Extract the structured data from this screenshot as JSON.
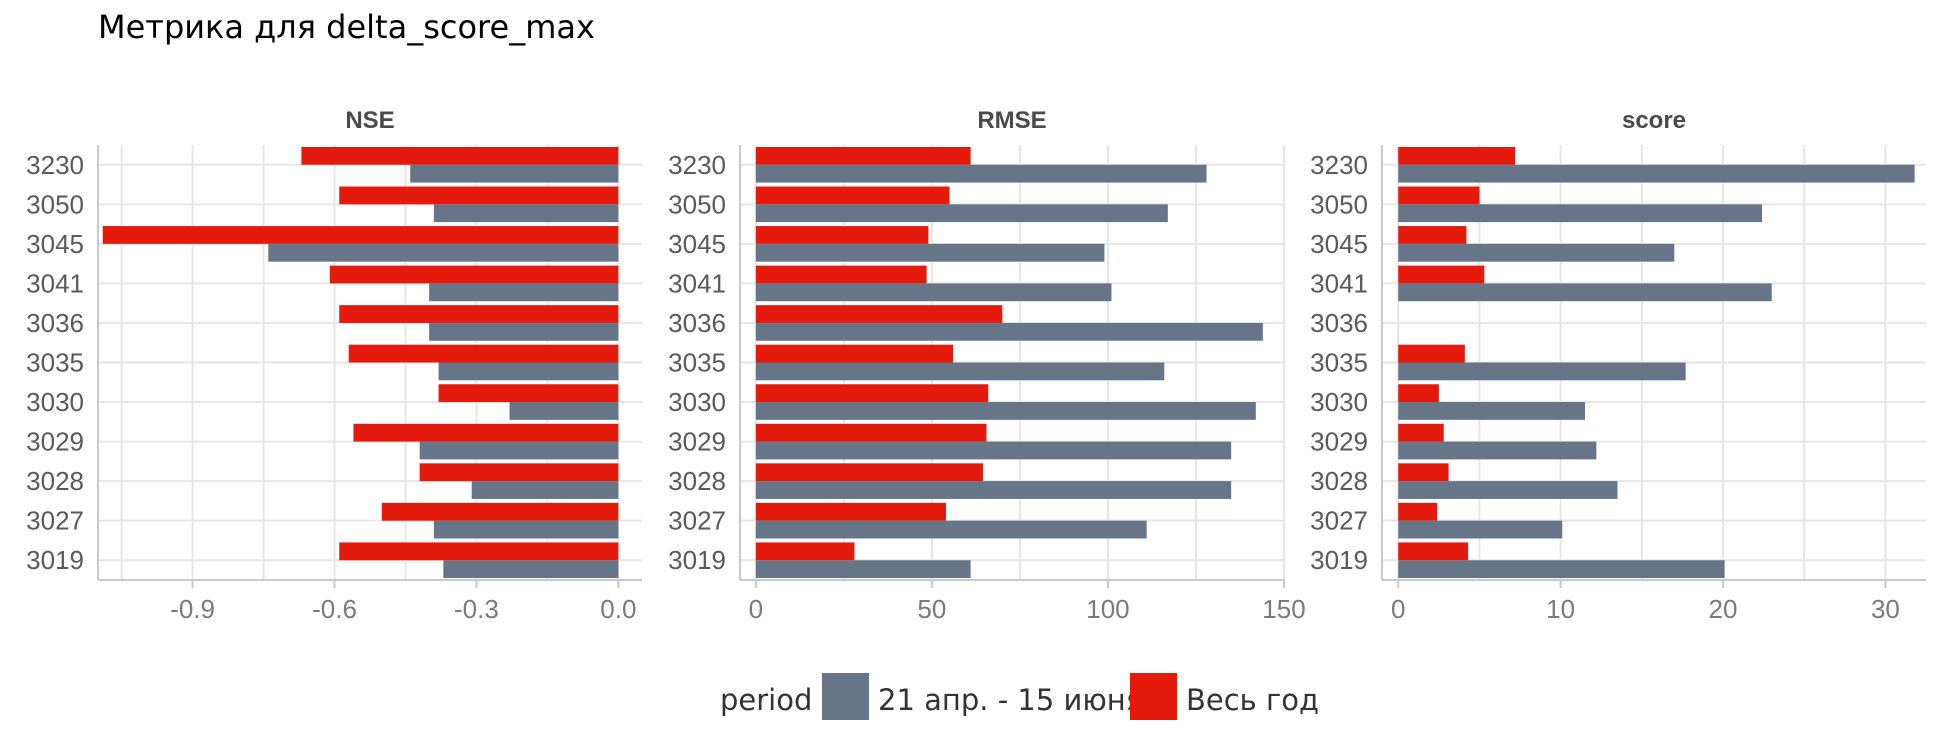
{
  "title": "Метрика для delta_score_max",
  "colors": {
    "series_a": "#667587",
    "series_b": "#e31a0c",
    "grid": "#e6e6e6",
    "axis": "#c8c8c8"
  },
  "legend": {
    "title": "period",
    "items": [
      {
        "label": "21 апр. - 15 июня",
        "color": "#667587"
      },
      {
        "label": "Весь год",
        "color": "#e31a0c"
      }
    ]
  },
  "chart_data": [
    {
      "type": "bar",
      "orientation": "horizontal",
      "panel": "NSE",
      "categories": [
        "3230",
        "3050",
        "3045",
        "3041",
        "3036",
        "3035",
        "3030",
        "3029",
        "3028",
        "3027",
        "3019"
      ],
      "series": [
        {
          "name": "21 апр. - 15 июня",
          "values": [
            -0.44,
            -0.39,
            -0.74,
            -0.4,
            -0.4,
            -0.38,
            -0.23,
            -0.42,
            -0.31,
            -0.39,
            -0.37
          ]
        },
        {
          "name": "Весь год",
          "values": [
            -0.67,
            -0.59,
            -1.09,
            -0.61,
            -0.59,
            -0.57,
            -0.38,
            -0.56,
            -0.42,
            -0.5,
            -0.59
          ]
        }
      ],
      "xlim": [
        -1.1,
        0.05
      ],
      "xticks": [
        -0.9,
        -0.6,
        -0.3,
        0.0
      ],
      "xtick_labels": [
        "-0.9",
        "-0.6",
        "-0.3",
        "0.0"
      ]
    },
    {
      "type": "bar",
      "orientation": "horizontal",
      "panel": "RMSE",
      "categories": [
        "3230",
        "3050",
        "3045",
        "3041",
        "3036",
        "3035",
        "3030",
        "3029",
        "3028",
        "3027",
        "3019"
      ],
      "series": [
        {
          "name": "21 апр. - 15 июня",
          "values": [
            128,
            117,
            99,
            101,
            144,
            116,
            142,
            135,
            135,
            111,
            61
          ]
        },
        {
          "name": "Весь год",
          "values": [
            61,
            55,
            49,
            48.5,
            70,
            56,
            66,
            65.5,
            64.5,
            54,
            28
          ]
        }
      ],
      "xlim": [
        -4.5,
        150
      ],
      "xticks": [
        0,
        50,
        100,
        150
      ],
      "xtick_labels": [
        "0",
        "50",
        "100",
        "150"
      ]
    },
    {
      "type": "bar",
      "orientation": "horizontal",
      "panel": "score",
      "categories": [
        "3230",
        "3050",
        "3045",
        "3041",
        "3036",
        "3035",
        "3030",
        "3029",
        "3028",
        "3027",
        "3019"
      ],
      "series": [
        {
          "name": "21 апр. - 15 июня",
          "values": [
            31.8,
            22.4,
            17,
            23,
            0,
            17.7,
            11.5,
            12.2,
            13.5,
            10.1,
            20.1
          ]
        },
        {
          "name": "Весь год",
          "values": [
            7.2,
            5,
            4.2,
            5.3,
            0,
            4.1,
            2.5,
            2.8,
            3.1,
            2.4,
            4.3
          ]
        }
      ],
      "xlim": [
        -1.0,
        32.5
      ],
      "xticks": [
        0,
        10,
        20,
        30
      ],
      "xtick_labels": [
        "0",
        "10",
        "20",
        "30"
      ]
    }
  ]
}
